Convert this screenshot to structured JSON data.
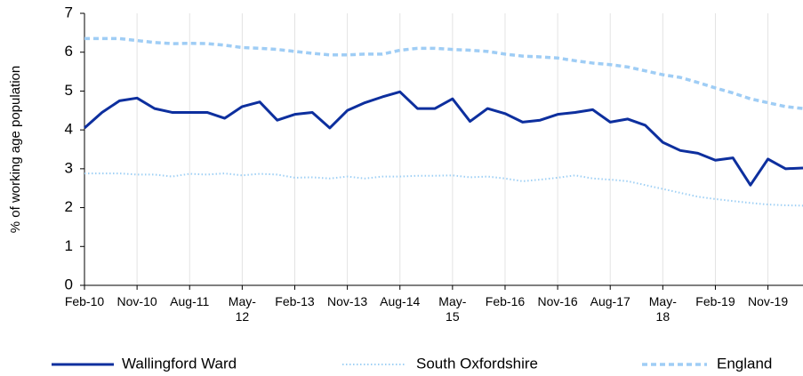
{
  "chart_data": {
    "type": "line",
    "y_label": "% of working age population",
    "categories": [
      "Feb-10",
      null,
      null,
      "Nov-10",
      null,
      null,
      "Aug-11",
      null,
      null,
      "May-\n12",
      null,
      null,
      "Feb-13",
      null,
      null,
      "Nov-13",
      null,
      null,
      "Aug-14",
      null,
      null,
      "May-\n15",
      null,
      null,
      "Feb-16",
      null,
      null,
      "Nov-16",
      null,
      null,
      "Aug-17",
      null,
      null,
      "May-\n18",
      null,
      null,
      "Feb-19",
      null,
      null,
      "Nov-19",
      null,
      null
    ],
    "series": [
      {
        "name": "Wallingford Ward",
        "color": "#0d2f9e",
        "style": "solid",
        "values": [
          4.05,
          4.45,
          4.75,
          4.82,
          4.55,
          4.45,
          4.45,
          4.45,
          4.3,
          4.6,
          4.72,
          4.25,
          4.4,
          4.45,
          4.05,
          4.5,
          4.7,
          4.85,
          4.98,
          4.55,
          4.55,
          4.8,
          4.22,
          4.55,
          4.42,
          4.2,
          4.25,
          4.4,
          4.45,
          4.52,
          4.2,
          4.28,
          4.12,
          3.68,
          3.47,
          3.4,
          3.22,
          3.28,
          2.58,
          3.25,
          3.0,
          3.02
        ]
      },
      {
        "name": "South Oxfordshire",
        "color": "#9fd0f5",
        "style": "dotted",
        "values": [
          2.88,
          2.88,
          2.88,
          2.85,
          2.85,
          2.8,
          2.87,
          2.85,
          2.88,
          2.83,
          2.87,
          2.85,
          2.77,
          2.78,
          2.75,
          2.8,
          2.75,
          2.8,
          2.8,
          2.82,
          2.82,
          2.83,
          2.78,
          2.8,
          2.75,
          2.68,
          2.72,
          2.77,
          2.83,
          2.75,
          2.72,
          2.68,
          2.58,
          2.48,
          2.38,
          2.28,
          2.22,
          2.17,
          2.12,
          2.08,
          2.06,
          2.05
        ]
      },
      {
        "name": "England",
        "color": "#9fcdf5",
        "style": "dashed",
        "values": [
          6.35,
          6.35,
          6.35,
          6.3,
          6.25,
          6.22,
          6.23,
          6.22,
          6.18,
          6.12,
          6.1,
          6.07,
          6.02,
          5.97,
          5.93,
          5.93,
          5.95,
          5.95,
          6.05,
          6.1,
          6.1,
          6.07,
          6.05,
          6.02,
          5.95,
          5.9,
          5.88,
          5.85,
          5.78,
          5.72,
          5.68,
          5.62,
          5.52,
          5.42,
          5.35,
          5.22,
          5.08,
          4.95,
          4.8,
          4.7,
          4.6,
          4.55
        ]
      }
    ],
    "ylim": [
      0,
      7
    ],
    "yticks": [
      0,
      1,
      2,
      3,
      4,
      5,
      6,
      7
    ],
    "grid": true,
    "legend": "bottom"
  }
}
